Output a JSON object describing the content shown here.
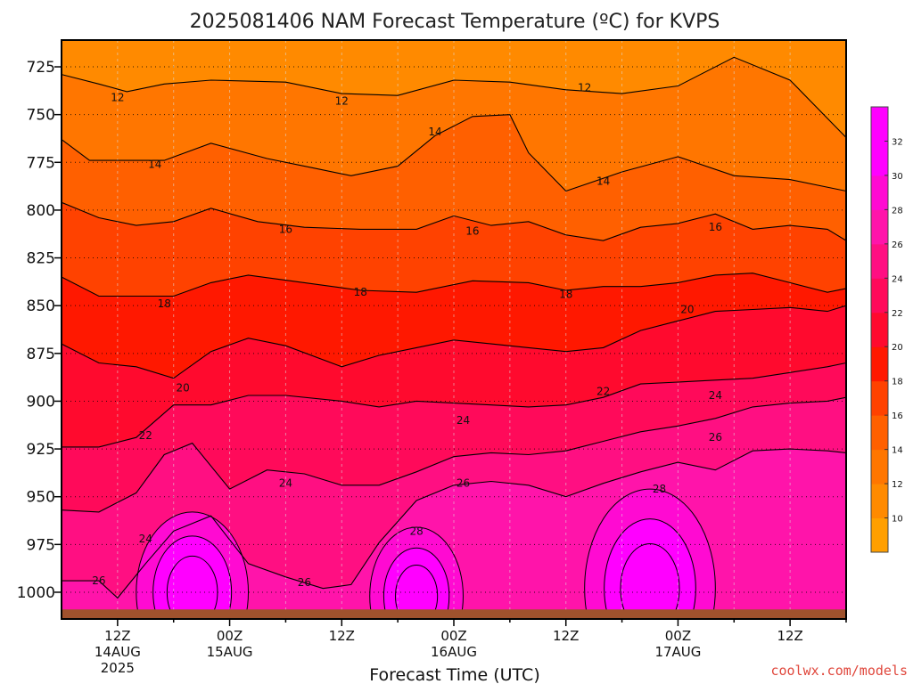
{
  "chart_data": {
    "type": "heatmap",
    "title": "2025081406 NAM Forecast Temperature (ºC) for KVPS",
    "xlabel": "Forecast Time (UTC)",
    "ylabel": "",
    "y_axis": {
      "reversed": true,
      "ticks": [
        725,
        750,
        775,
        800,
        825,
        850,
        875,
        900,
        925,
        950,
        975,
        1000
      ],
      "ylim": [
        1014,
        711
      ]
    },
    "x_axis": {
      "xlim_hours": [
        6,
        90
      ],
      "ticks": [
        {
          "hour": 12,
          "label": "12Z",
          "date": "14AUG",
          "year": "2025"
        },
        {
          "hour": 24,
          "label": "00Z",
          "date": "15AUG",
          "year": ""
        },
        {
          "hour": 36,
          "label": "12Z",
          "date": "",
          "year": ""
        },
        {
          "hour": 48,
          "label": "00Z",
          "date": "16AUG",
          "year": ""
        },
        {
          "hour": 60,
          "label": "12Z",
          "date": "",
          "year": ""
        },
        {
          "hour": 72,
          "label": "00Z",
          "date": "17AUG",
          "year": ""
        },
        {
          "hour": 84,
          "label": "12Z",
          "date": "",
          "year": ""
        }
      ]
    },
    "grid": true,
    "surface_pressure_hpa": 1009,
    "contour_interval": 2,
    "colorbar": {
      "ticks": [
        10,
        12,
        14,
        16,
        18,
        20,
        22,
        24,
        26,
        28,
        30,
        32
      ],
      "min": 8,
      "max": 34,
      "colors": [
        "#ff9f00",
        "#ff8a00",
        "#ff7600",
        "#ff6000",
        "#ff4200",
        "#ff1800",
        "#ff0a2e",
        "#ff0a5a",
        "#ff0f82",
        "#ff14aa",
        "#ff0ad2",
        "#ff00ff",
        "#ff00ff"
      ]
    },
    "contour_lines": [
      {
        "value": 12,
        "x": [
          6,
          10,
          13,
          17,
          22,
          30,
          36,
          42,
          48,
          54,
          60,
          66,
          72,
          78,
          84,
          90
        ],
        "p": [
          729,
          734,
          738,
          734,
          732,
          733,
          739,
          740,
          732,
          733,
          737,
          739,
          735,
          720,
          732,
          762
        ]
      },
      {
        "value": 14,
        "x": [
          6,
          9,
          13,
          17,
          22,
          28,
          33,
          37,
          42,
          46,
          50,
          54,
          56,
          60,
          66,
          72,
          78,
          84,
          90
        ],
        "p": [
          763,
          774,
          774,
          774,
          765,
          773,
          778,
          782,
          777,
          761,
          751,
          750,
          770,
          790,
          780,
          772,
          782,
          784,
          790
        ]
      },
      {
        "value": 16,
        "x": [
          6,
          10,
          14,
          18,
          22,
          27,
          32,
          38,
          44,
          48,
          52,
          56,
          60,
          64,
          68,
          72,
          76,
          80,
          84,
          88,
          90
        ],
        "p": [
          796,
          804,
          808,
          806,
          799,
          806,
          809,
          810,
          810,
          803,
          808,
          806,
          813,
          816,
          809,
          807,
          802,
          810,
          808,
          810,
          816
        ]
      },
      {
        "value": 18,
        "x": [
          6,
          10,
          14,
          18,
          22,
          26,
          32,
          38,
          44,
          50,
          56,
          60,
          64,
          68,
          72,
          76,
          80,
          84,
          88,
          90
        ],
        "p": [
          835,
          845,
          845,
          845,
          838,
          834,
          838,
          842,
          843,
          837,
          838,
          842,
          840,
          840,
          838,
          834,
          833,
          838,
          843,
          841
        ]
      },
      {
        "value": 20,
        "x": [
          6,
          10,
          14,
          18,
          22,
          26,
          30,
          36,
          40,
          44,
          48,
          52,
          56,
          60,
          64,
          68,
          72,
          76,
          80,
          84,
          88,
          90
        ],
        "p": [
          870,
          880,
          882,
          888,
          874,
          867,
          871,
          882,
          876,
          872,
          868,
          870,
          872,
          874,
          872,
          863,
          858,
          853,
          852,
          851,
          853,
          850
        ]
      },
      {
        "value": 22,
        "x": [
          6,
          10,
          14,
          18,
          22,
          26,
          30,
          36,
          40,
          44,
          48,
          52,
          56,
          60,
          64,
          68,
          72,
          76,
          80,
          84,
          88,
          90
        ],
        "p": [
          924,
          924,
          919,
          902,
          902,
          897,
          897,
          900,
          903,
          900,
          901,
          902,
          903,
          902,
          898,
          891,
          890,
          889,
          888,
          885,
          882,
          880
        ]
      },
      {
        "value": 24,
        "x": [
          6,
          10,
          14,
          17,
          20,
          24,
          28,
          32,
          36,
          40,
          44,
          48,
          52,
          56,
          60,
          64,
          68,
          72,
          76,
          80,
          84,
          88,
          90
        ],
        "p": [
          957,
          958,
          948,
          928,
          922,
          946,
          936,
          938,
          944,
          944,
          937,
          929,
          927,
          928,
          926,
          921,
          916,
          913,
          909,
          903,
          901,
          900,
          898
        ]
      },
      {
        "value": 26,
        "x": [
          6,
          10,
          12,
          15,
          18,
          22,
          26,
          30,
          34,
          37,
          40,
          44,
          48,
          52,
          56,
          60,
          64,
          68,
          72,
          76,
          80,
          84,
          88,
          90
        ],
        "p": [
          994,
          994,
          1003,
          985,
          968,
          960,
          985,
          992,
          998,
          996,
          974,
          952,
          944,
          942,
          944,
          950,
          943,
          937,
          932,
          936,
          926,
          925,
          926,
          927
        ]
      }
    ],
    "contour_labels": [
      {
        "value": 12,
        "x": 12,
        "p": 741
      },
      {
        "value": 12,
        "x": 36,
        "p": 743
      },
      {
        "value": 12,
        "x": 62,
        "p": 736
      },
      {
        "value": 14,
        "x": 46,
        "p": 759
      },
      {
        "value": 14,
        "x": 16,
        "p": 776
      },
      {
        "value": 14,
        "x": 64,
        "p": 785
      },
      {
        "value": 16,
        "x": 30,
        "p": 810
      },
      {
        "value": 16,
        "x": 50,
        "p": 811
      },
      {
        "value": 16,
        "x": 76,
        "p": 809
      },
      {
        "value": 18,
        "x": 17,
        "p": 849
      },
      {
        "value": 18,
        "x": 38,
        "p": 843
      },
      {
        "value": 18,
        "x": 60,
        "p": 844
      },
      {
        "value": 20,
        "x": 19,
        "p": 893
      },
      {
        "value": 20,
        "x": 73,
        "p": 852
      },
      {
        "value": 22,
        "x": 15,
        "p": 918
      },
      {
        "value": 22,
        "x": 64,
        "p": 895
      },
      {
        "value": 24,
        "x": 15,
        "p": 972
      },
      {
        "value": 24,
        "x": 30,
        "p": 943
      },
      {
        "value": 24,
        "x": 49,
        "p": 910
      },
      {
        "value": 24,
        "x": 76,
        "p": 897
      },
      {
        "value": 26,
        "x": 10,
        "p": 994
      },
      {
        "value": 26,
        "x": 32,
        "p": 995
      },
      {
        "value": 26,
        "x": 49,
        "p": 943
      },
      {
        "value": 26,
        "x": 76,
        "p": 919
      },
      {
        "value": 28,
        "x": 44,
        "p": 968
      },
      {
        "value": 28,
        "x": 70,
        "p": 946
      }
    ]
  },
  "footer": {
    "credit": "coolwx.com/models"
  }
}
